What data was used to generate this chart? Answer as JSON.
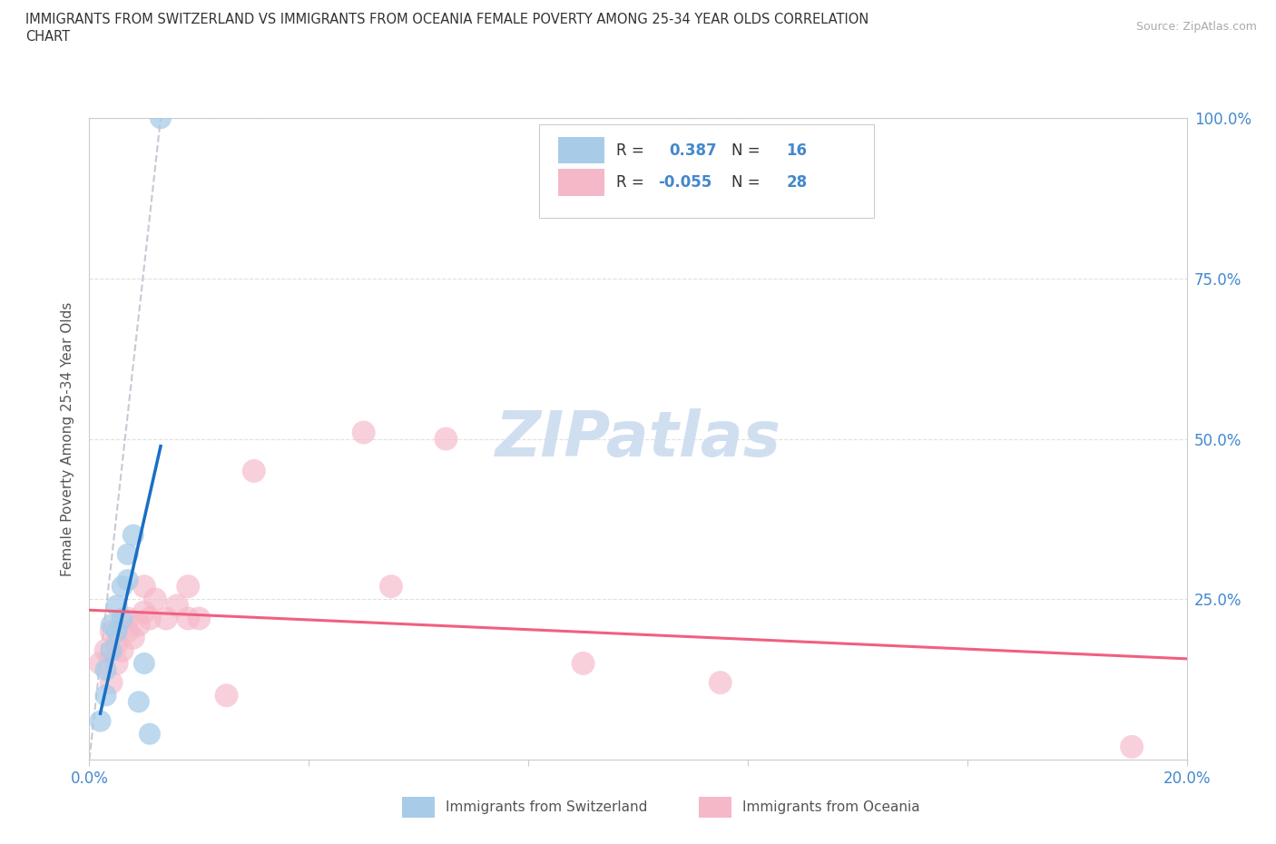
{
  "title_line1": "IMMIGRANTS FROM SWITZERLAND VS IMMIGRANTS FROM OCEANIA FEMALE POVERTY AMONG 25-34 YEAR OLDS CORRELATION",
  "title_line2": "CHART",
  "source_text": "Source: ZipAtlas.com",
  "ylabel": "Female Poverty Among 25-34 Year Olds",
  "xlim": [
    0.0,
    0.2
  ],
  "ylim": [
    0.0,
    1.0
  ],
  "xticks": [
    0.0,
    0.04,
    0.08,
    0.12,
    0.16,
    0.2
  ],
  "xticklabels": [
    "0.0%",
    "",
    "",
    "",
    "",
    "20.0%"
  ],
  "yticks": [
    0.0,
    0.25,
    0.5,
    0.75,
    1.0
  ],
  "yticklabels_right": [
    "",
    "25.0%",
    "50.0%",
    "75.0%",
    "100.0%"
  ],
  "r_switzerland": 0.387,
  "n_switzerland": 16,
  "r_oceania": -0.055,
  "n_oceania": 28,
  "color_switzerland": "#a8cce8",
  "color_oceania": "#f5b8c8",
  "color_trend_switzerland": "#1a6fc4",
  "color_trend_oceania": "#f06080",
  "color_dashed": "#bbbbcc",
  "watermark_color": "#d0dff0",
  "swiss_x": [
    0.002,
    0.003,
    0.003,
    0.004,
    0.004,
    0.005,
    0.005,
    0.006,
    0.006,
    0.007,
    0.007,
    0.008,
    0.009,
    0.01,
    0.011,
    0.013
  ],
  "swiss_y": [
    0.06,
    0.1,
    0.14,
    0.17,
    0.21,
    0.2,
    0.24,
    0.22,
    0.27,
    0.28,
    0.32,
    0.35,
    0.09,
    0.15,
    0.04,
    1.0
  ],
  "oceania_x": [
    0.002,
    0.003,
    0.004,
    0.004,
    0.005,
    0.005,
    0.006,
    0.007,
    0.007,
    0.008,
    0.009,
    0.01,
    0.01,
    0.011,
    0.012,
    0.014,
    0.016,
    0.018,
    0.018,
    0.02,
    0.025,
    0.03,
    0.05,
    0.055,
    0.065,
    0.09,
    0.115,
    0.19
  ],
  "oceania_y": [
    0.15,
    0.17,
    0.12,
    0.2,
    0.15,
    0.18,
    0.17,
    0.22,
    0.2,
    0.19,
    0.21,
    0.23,
    0.27,
    0.22,
    0.25,
    0.22,
    0.24,
    0.22,
    0.27,
    0.22,
    0.1,
    0.45,
    0.51,
    0.27,
    0.5,
    0.15,
    0.12,
    0.02
  ],
  "swiss_dot_size": 300,
  "oceania_dot_size": 350,
  "background_color": "#ffffff",
  "grid_color": "#dddddd",
  "legend_bottom_labels": [
    "Immigrants from Switzerland",
    "Immigrants from Oceania"
  ]
}
